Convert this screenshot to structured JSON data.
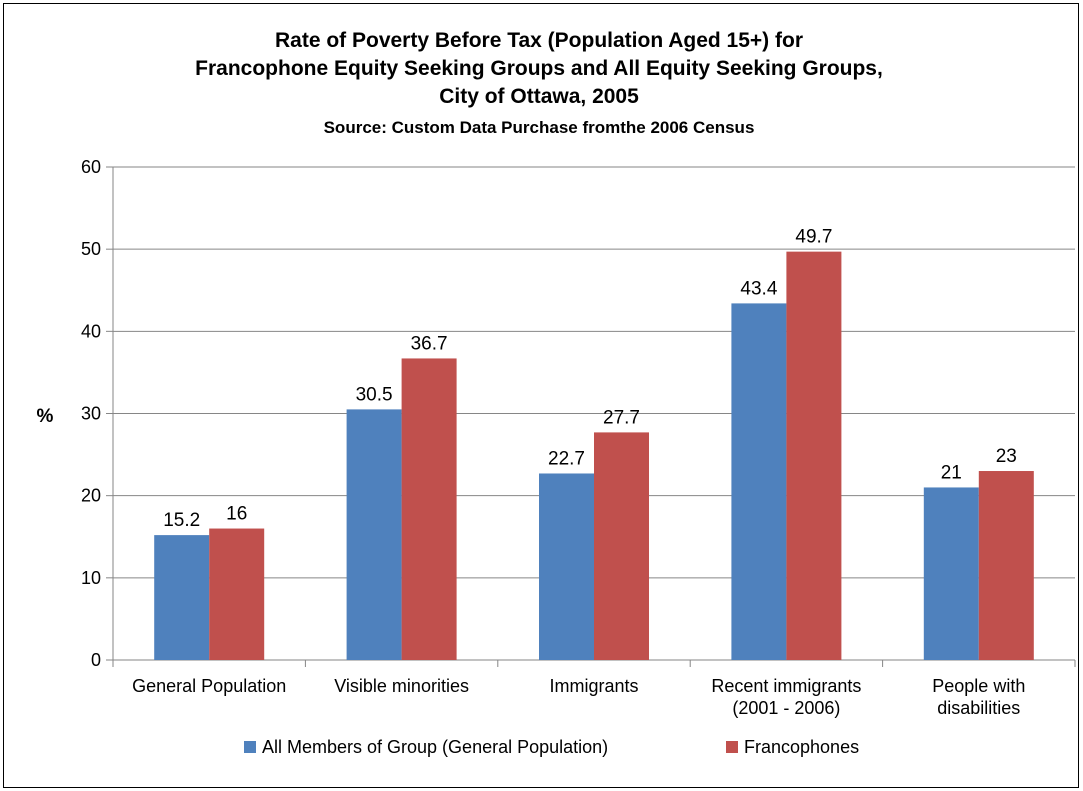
{
  "chart_data": {
    "type": "bar",
    "title": [
      "Rate of Poverty Before Tax (Population Aged 15+) for",
      "Francophone Equity Seeking Groups and All Equity Seeking Groups,",
      "City of Ottawa, 2005"
    ],
    "subtitle": "Source:   Custom Data Purchase fromthe 2006 Census",
    "ylabel": "%",
    "xlabel": "",
    "ylim": [
      0,
      60
    ],
    "yticks": [
      "0",
      "10",
      "20",
      "30",
      "40",
      "50",
      "60"
    ],
    "grid": "horizontal",
    "legend_position": "bottom",
    "categories": [
      [
        "General Population"
      ],
      [
        "Visible minorities"
      ],
      [
        "Immigrants"
      ],
      [
        "Recent immigrants",
        "(2001 - 2006)"
      ],
      [
        "People with",
        "disabilities"
      ]
    ],
    "series": [
      {
        "name": "All Members of Group (General Population)",
        "color": "#4F81BD",
        "values": [
          15.2,
          30.5,
          22.7,
          43.4,
          21
        ],
        "labels": [
          "15.2",
          "30.5",
          "22.7",
          "43.4",
          "21"
        ]
      },
      {
        "name": "Francophones",
        "color": "#C0504D",
        "values": [
          16,
          36.7,
          27.7,
          49.7,
          23
        ],
        "labels": [
          "16",
          "36.7",
          "27.7",
          "49.7",
          "23"
        ]
      }
    ]
  }
}
